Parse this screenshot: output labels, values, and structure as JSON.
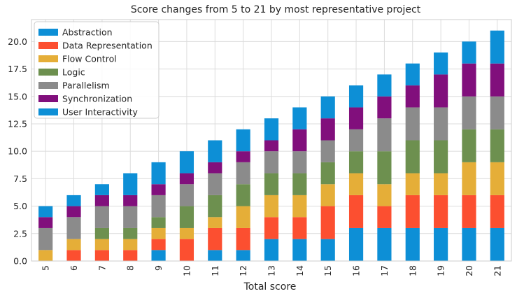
{
  "chart_data": {
    "type": "bar",
    "stacked": true,
    "title": "Score changes from 5 to 21 by most representative project",
    "xlabel": "Total score",
    "ylabel": "",
    "ylim": [
      0,
      22
    ],
    "yticks": [
      "0.0",
      "2.5",
      "5.0",
      "7.5",
      "10.0",
      "12.5",
      "15.0",
      "17.5",
      "20.0"
    ],
    "grid": true,
    "legend_position": "top-left",
    "categories": [
      "5",
      "6",
      "7",
      "8",
      "9",
      "10",
      "11",
      "12",
      "13",
      "14",
      "15",
      "16",
      "17",
      "18",
      "19",
      "20",
      "21"
    ],
    "series": [
      {
        "name": "Abstraction",
        "color": "#0d8fd6",
        "values": [
          0,
          0,
          0,
          0,
          1,
          0,
          1,
          1,
          2,
          2,
          2,
          3,
          3,
          3,
          3,
          3,
          3
        ]
      },
      {
        "name": "Data Representation",
        "color": "#fc4f30",
        "values": [
          0,
          1,
          1,
          1,
          1,
          2,
          2,
          2,
          2,
          2,
          3,
          3,
          2,
          3,
          3,
          3,
          3
        ]
      },
      {
        "name": "Flow Control",
        "color": "#e5ae38",
        "values": [
          1,
          1,
          1,
          1,
          1,
          1,
          1,
          2,
          2,
          2,
          2,
          2,
          2,
          2,
          2,
          3,
          3
        ]
      },
      {
        "name": "Logic",
        "color": "#6d904f",
        "values": [
          0,
          0,
          1,
          1,
          1,
          2,
          2,
          2,
          2,
          2,
          2,
          2,
          3,
          3,
          3,
          3,
          3
        ]
      },
      {
        "name": "Parallelism",
        "color": "#8b8b8b",
        "values": [
          2,
          2,
          2,
          2,
          2,
          2,
          2,
          2,
          2,
          2,
          2,
          2,
          3,
          3,
          3,
          3,
          3
        ]
      },
      {
        "name": "Synchronization",
        "color": "#810f7c",
        "values": [
          1,
          1,
          1,
          1,
          1,
          1,
          1,
          1,
          1,
          2,
          2,
          2,
          2,
          2,
          3,
          3,
          3
        ]
      },
      {
        "name": "User Interactivity",
        "color": "#0d8fd6",
        "values": [
          1,
          1,
          1,
          2,
          2,
          2,
          2,
          2,
          2,
          2,
          2,
          2,
          2,
          2,
          2,
          2,
          3
        ]
      }
    ]
  }
}
